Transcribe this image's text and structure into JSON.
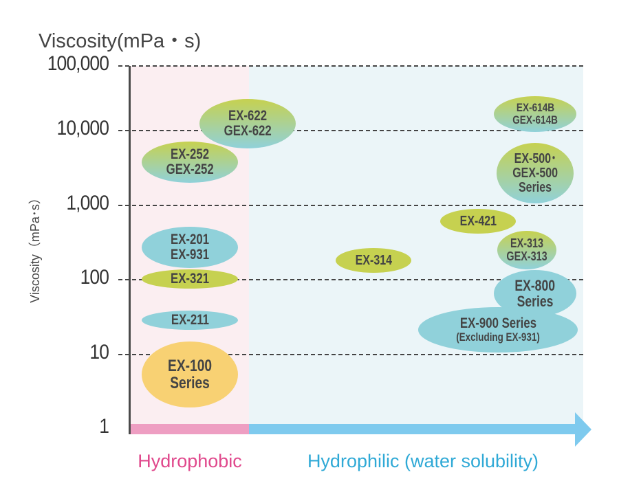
{
  "title": "Viscosity(mPa・s)",
  "ylabel": "Viscosity（mPa･s）",
  "y_ticks": [
    "1",
    "10",
    "100",
    "1,000",
    "10,000",
    "100,000"
  ],
  "y_scale": "log",
  "x_categories": {
    "hydrophobic": "Hydrophobic",
    "hydrophilic": "Hydrophilic (water solubility)"
  },
  "colors": {
    "hydrophobic": "#e0488c",
    "hydrophilic": "#2fa9d6",
    "hydrophobic_bar": "#ee9ec2",
    "hydrophilic_bar": "#7ecaee",
    "green": "#c6d150",
    "blue": "#90d1da",
    "yellow": "#f8d173"
  },
  "products": [
    {
      "id": "ex622",
      "lines": [
        "EX-622",
        "GEX-622"
      ],
      "color": "green-blue",
      "group": "hydrophobic/hydrophilic"
    },
    {
      "id": "ex252",
      "lines": [
        "EX-252",
        "GEX-252"
      ],
      "color": "green-blue",
      "group": "hydrophobic"
    },
    {
      "id": "ex201",
      "lines": [
        "EX-201",
        "EX-931"
      ],
      "color": "blue",
      "group": "hydrophobic"
    },
    {
      "id": "ex321",
      "lines": [
        "EX-321"
      ],
      "color": "green",
      "group": "hydrophobic"
    },
    {
      "id": "ex211",
      "lines": [
        "EX-211"
      ],
      "color": "blue",
      "group": "hydrophobic"
    },
    {
      "id": "ex100",
      "lines": [
        "EX-100",
        "Series"
      ],
      "color": "yellow",
      "group": "hydrophobic"
    },
    {
      "id": "ex614b",
      "lines": [
        "EX-614B",
        "GEX-614B"
      ],
      "color": "green-blue",
      "group": "hydrophilic"
    },
    {
      "id": "ex500",
      "lines": [
        "EX-500･",
        "GEX-500",
        "Series"
      ],
      "color": "green-blue",
      "group": "hydrophilic"
    },
    {
      "id": "ex421",
      "lines": [
        "EX-421"
      ],
      "color": "green",
      "group": "hydrophilic"
    },
    {
      "id": "ex313",
      "lines": [
        "EX-313",
        "GEX-313"
      ],
      "color": "green-blue",
      "group": "hydrophilic"
    },
    {
      "id": "ex314",
      "lines": [
        "EX-314"
      ],
      "color": "green",
      "group": "hydrophilic"
    },
    {
      "id": "ex800",
      "lines": [
        "EX-800",
        "Series"
      ],
      "color": "blue",
      "group": "hydrophilic"
    },
    {
      "id": "ex900",
      "lines": [
        "EX-900 Series",
        "(Excluding EX-931)"
      ],
      "color": "blue",
      "group": "hydrophilic"
    }
  ]
}
